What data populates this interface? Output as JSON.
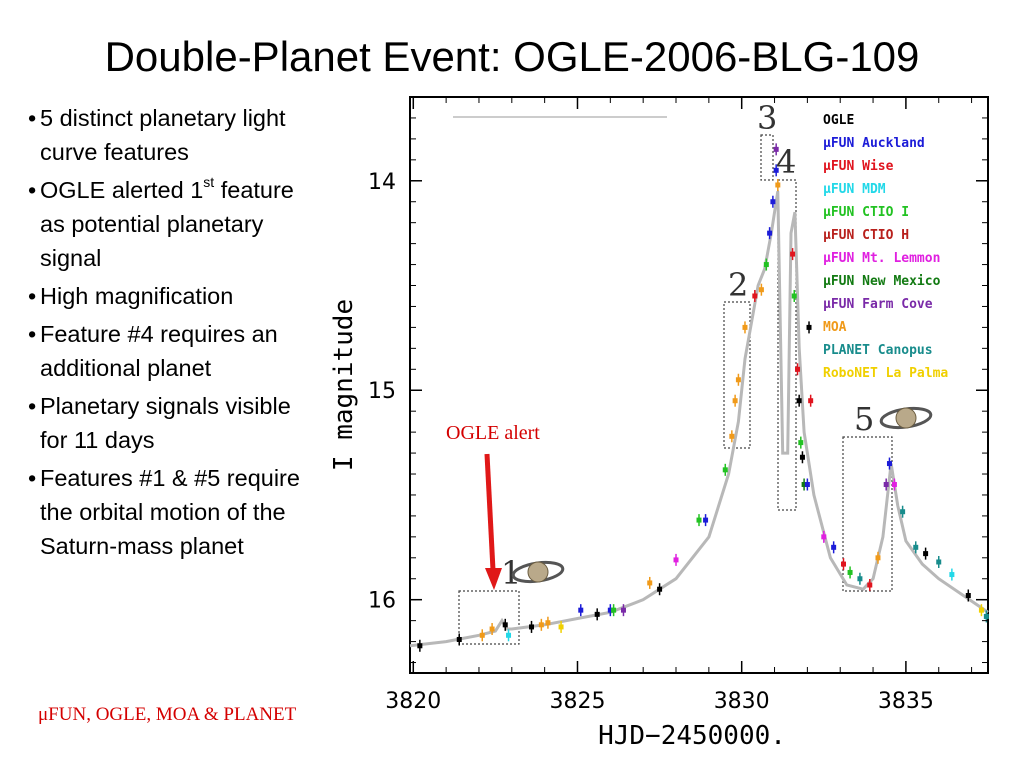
{
  "title": "Double-Planet Event: OGLE-2006-BLG-109",
  "bullets": [
    {
      "text": "5 distinct planetary light curve features"
    },
    {
      "text": "OGLE alerted 1",
      "sup": "st",
      "rest": " feature as potential planetary signal"
    },
    {
      "text": "High magnification"
    },
    {
      "text": "Feature #4 requires an additional planet"
    },
    {
      "text": "Planetary signals visible for 11 days"
    },
    {
      "text": "Features #1 & #5 require the orbital motion of the Saturn-mass planet"
    }
  ],
  "credit": "μFUN, OGLE, MOA & PLANET",
  "chart_data": {
    "type": "scatter",
    "xlabel": "HJD−2450000.",
    "ylabel": "I magnitude",
    "x_ticks": [
      "3820",
      "3825",
      "3830",
      "3835"
    ],
    "y_ticks": [
      "14",
      "15",
      "16"
    ],
    "xlim": [
      3819.9,
      3837.5
    ],
    "ylim": [
      16.35,
      13.6
    ],
    "y_inverted": true,
    "annotation": "OGLE alert",
    "feature_labels": [
      "1",
      "2",
      "3",
      "4",
      "5"
    ],
    "legend": [
      {
        "name": "OGLE",
        "color": "#000000"
      },
      {
        "name": "μFUN Auckland",
        "color": "#1c1cd8"
      },
      {
        "name": "μFUN Wise",
        "color": "#e0141e"
      },
      {
        "name": "μFUN MDM",
        "color": "#22d8e8"
      },
      {
        "name": "μFUN CTIO I",
        "color": "#22c222"
      },
      {
        "name": "μFUN CTIO H",
        "color": "#b8201c"
      },
      {
        "name": "μFUN Mt. Lemmon",
        "color": "#e020e0"
      },
      {
        "name": "μFUN New Mexico",
        "color": "#127a12"
      },
      {
        "name": "μFUN Farm Cove",
        "color": "#7a2aa8"
      },
      {
        "name": "MOA",
        "color": "#f09a1a"
      },
      {
        "name": "PLANET Canopus",
        "color": "#188c8c"
      },
      {
        "name": "RoboNET La Palma",
        "color": "#f0d000"
      }
    ],
    "model_curve": [
      [
        3819.9,
        16.22
      ],
      [
        3821,
        16.2
      ],
      [
        3822,
        16.17
      ],
      [
        3822.5,
        16.15
      ],
      [
        3822.7,
        16.1
      ],
      [
        3822.85,
        16.14
      ],
      [
        3823,
        16.14
      ],
      [
        3824,
        16.12
      ],
      [
        3825,
        16.09
      ],
      [
        3826,
        16.06
      ],
      [
        3827,
        16.0
      ],
      [
        3828,
        15.9
      ],
      [
        3829,
        15.7
      ],
      [
        3829.6,
        15.4
      ],
      [
        3829.9,
        15.15
      ],
      [
        3830.1,
        14.85
      ],
      [
        3830.5,
        14.5
      ],
      [
        3830.7,
        14.42
      ],
      [
        3830.9,
        14.25
      ],
      [
        3831.1,
        14.05
      ],
      [
        3831.25,
        15.3
      ],
      [
        3831.4,
        15.3
      ],
      [
        3831.5,
        14.25
      ],
      [
        3831.62,
        14.15
      ],
      [
        3831.75,
        14.8
      ],
      [
        3831.9,
        15.2
      ],
      [
        3832.2,
        15.5
      ],
      [
        3832.7,
        15.8
      ],
      [
        3833.2,
        15.93
      ],
      [
        3833.7,
        15.95
      ],
      [
        3834.0,
        15.9
      ],
      [
        3834.3,
        15.7
      ],
      [
        3834.55,
        15.35
      ],
      [
        3834.75,
        15.55
      ],
      [
        3835.0,
        15.72
      ],
      [
        3835.5,
        15.83
      ],
      [
        3836.0,
        15.9
      ],
      [
        3837.5,
        16.06
      ]
    ],
    "points": [
      {
        "x": 3820.2,
        "y": 16.22,
        "c": "#000000"
      },
      {
        "x": 3821.4,
        "y": 16.19,
        "c": "#000000"
      },
      {
        "x": 3822.1,
        "y": 16.17,
        "c": "#f09a1a"
      },
      {
        "x": 3822.4,
        "y": 16.14,
        "c": "#f09a1a"
      },
      {
        "x": 3822.8,
        "y": 16.12,
        "c": "#000000"
      },
      {
        "x": 3822.9,
        "y": 16.17,
        "c": "#22d8e8"
      },
      {
        "x": 3823.6,
        "y": 16.13,
        "c": "#000000"
      },
      {
        "x": 3823.9,
        "y": 16.12,
        "c": "#f09a1a"
      },
      {
        "x": 3824.1,
        "y": 16.11,
        "c": "#f09a1a"
      },
      {
        "x": 3824.5,
        "y": 16.13,
        "c": "#f0d000"
      },
      {
        "x": 3825.1,
        "y": 16.05,
        "c": "#1c1cd8"
      },
      {
        "x": 3825.6,
        "y": 16.07,
        "c": "#000000"
      },
      {
        "x": 3826.0,
        "y": 16.05,
        "c": "#1c1cd8"
      },
      {
        "x": 3826.1,
        "y": 16.05,
        "c": "#22c222"
      },
      {
        "x": 3826.4,
        "y": 16.05,
        "c": "#7a2aa8"
      },
      {
        "x": 3827.2,
        "y": 15.92,
        "c": "#f09a1a"
      },
      {
        "x": 3827.5,
        "y": 15.95,
        "c": "#000000"
      },
      {
        "x": 3828.0,
        "y": 15.81,
        "c": "#e020e0"
      },
      {
        "x": 3828.7,
        "y": 15.62,
        "c": "#22c222"
      },
      {
        "x": 3828.9,
        "y": 15.62,
        "c": "#1c1cd8"
      },
      {
        "x": 3829.5,
        "y": 15.38,
        "c": "#22c222"
      },
      {
        "x": 3829.7,
        "y": 15.22,
        "c": "#f09a1a"
      },
      {
        "x": 3829.8,
        "y": 15.05,
        "c": "#f09a1a"
      },
      {
        "x": 3829.9,
        "y": 14.95,
        "c": "#f09a1a"
      },
      {
        "x": 3830.1,
        "y": 14.7,
        "c": "#f09a1a"
      },
      {
        "x": 3830.4,
        "y": 14.55,
        "c": "#e0141e"
      },
      {
        "x": 3830.6,
        "y": 14.52,
        "c": "#f09a1a"
      },
      {
        "x": 3830.75,
        "y": 14.4,
        "c": "#22c222"
      },
      {
        "x": 3830.85,
        "y": 14.25,
        "c": "#1c1cd8"
      },
      {
        "x": 3830.95,
        "y": 14.1,
        "c": "#1c1cd8"
      },
      {
        "x": 3831.05,
        "y": 13.95,
        "c": "#1c1cd8"
      },
      {
        "x": 3831.05,
        "y": 13.85,
        "c": "#7a2aa8"
      },
      {
        "x": 3831.1,
        "y": 14.02,
        "c": "#f09a1a"
      },
      {
        "x": 3831.55,
        "y": 14.35,
        "c": "#e0141e"
      },
      {
        "x": 3831.6,
        "y": 14.55,
        "c": "#22c222"
      },
      {
        "x": 3831.7,
        "y": 14.9,
        "c": "#e0141e"
      },
      {
        "x": 3831.75,
        "y": 15.05,
        "c": "#000000"
      },
      {
        "x": 3831.8,
        "y": 15.25,
        "c": "#22c222"
      },
      {
        "x": 3831.85,
        "y": 15.32,
        "c": "#000000"
      },
      {
        "x": 3831.9,
        "y": 15.45,
        "c": "#127a12"
      },
      {
        "x": 3832.0,
        "y": 15.45,
        "c": "#1c1cd8"
      },
      {
        "x": 3832.05,
        "y": 14.7,
        "c": "#000000"
      },
      {
        "x": 3832.1,
        "y": 15.05,
        "c": "#e0141e"
      },
      {
        "x": 3832.5,
        "y": 15.7,
        "c": "#e020e0"
      },
      {
        "x": 3832.8,
        "y": 15.75,
        "c": "#1c1cd8"
      },
      {
        "x": 3833.1,
        "y": 15.83,
        "c": "#e0141e"
      },
      {
        "x": 3833.3,
        "y": 15.87,
        "c": "#22c222"
      },
      {
        "x": 3833.6,
        "y": 15.9,
        "c": "#188c8c"
      },
      {
        "x": 3833.9,
        "y": 15.93,
        "c": "#e0141e"
      },
      {
        "x": 3834.15,
        "y": 15.8,
        "c": "#f09a1a"
      },
      {
        "x": 3834.4,
        "y": 15.45,
        "c": "#7a2aa8"
      },
      {
        "x": 3834.5,
        "y": 15.35,
        "c": "#1c1cd8"
      },
      {
        "x": 3834.65,
        "y": 15.45,
        "c": "#e020e0"
      },
      {
        "x": 3834.9,
        "y": 15.58,
        "c": "#188c8c"
      },
      {
        "x": 3835.3,
        "y": 15.75,
        "c": "#188c8c"
      },
      {
        "x": 3835.6,
        "y": 15.78,
        "c": "#000000"
      },
      {
        "x": 3836.0,
        "y": 15.82,
        "c": "#188c8c"
      },
      {
        "x": 3836.4,
        "y": 15.88,
        "c": "#22d8e8"
      },
      {
        "x": 3836.9,
        "y": 15.98,
        "c": "#000000"
      },
      {
        "x": 3837.3,
        "y": 16.05,
        "c": "#f0d000"
      },
      {
        "x": 3837.45,
        "y": 16.08,
        "c": "#188c8c"
      }
    ]
  }
}
